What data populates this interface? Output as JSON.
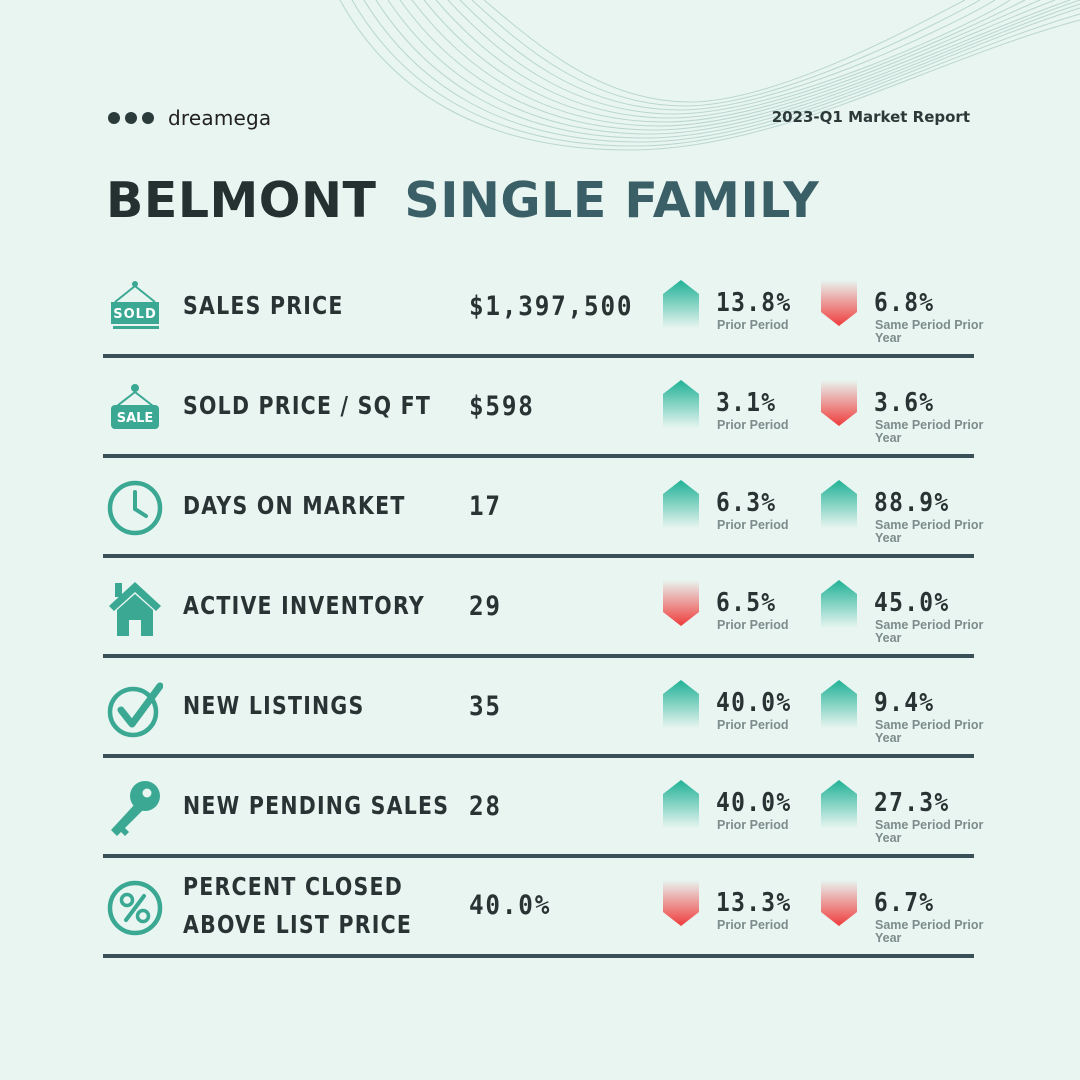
{
  "brand": {
    "name": "dreamega"
  },
  "report_label": "2023-Q1 Market Report",
  "title": {
    "city": "BELMONT",
    "type": "SINGLE FAMILY"
  },
  "colors": {
    "up": "#2bb39a",
    "down": "#e53935",
    "text": "#2a3333",
    "accent": "#3b5f67",
    "icon": "#3aa892",
    "background": "#e8f5f1"
  },
  "metrics": [
    {
      "icon": "sold-sign-icon",
      "label": "SALES PRICE",
      "value": "$1,397,500",
      "prior_period": {
        "pct": "13.8%",
        "dir": "up",
        "caption": "Prior Period"
      },
      "prior_year": {
        "pct": "6.8%",
        "dir": "down",
        "caption": "Same Period Prior Year"
      }
    },
    {
      "icon": "sale-tag-icon",
      "label": "SOLD PRICE / SQ FT",
      "value": "$598",
      "prior_period": {
        "pct": "3.1%",
        "dir": "up",
        "caption": "Prior Period"
      },
      "prior_year": {
        "pct": "3.6%",
        "dir": "down",
        "caption": "Same Period Prior Year"
      }
    },
    {
      "icon": "clock-icon",
      "label": "DAYS ON MARKET",
      "value": "17",
      "prior_period": {
        "pct": "6.3%",
        "dir": "up",
        "caption": "Prior Period"
      },
      "prior_year": {
        "pct": "88.9%",
        "dir": "up",
        "caption": "Same Period Prior Year"
      }
    },
    {
      "icon": "house-icon",
      "label": "ACTIVE INVENTORY",
      "value": "29",
      "prior_period": {
        "pct": "6.5%",
        "dir": "down",
        "caption": "Prior Period"
      },
      "prior_year": {
        "pct": "45.0%",
        "dir": "up",
        "caption": "Same Period Prior Year"
      }
    },
    {
      "icon": "checkmark-icon",
      "label": "NEW LISTINGS",
      "value": "35",
      "prior_period": {
        "pct": "40.0%",
        "dir": "up",
        "caption": "Prior Period"
      },
      "prior_year": {
        "pct": "9.4%",
        "dir": "up",
        "caption": "Same Period Prior Year"
      }
    },
    {
      "icon": "key-icon",
      "label": "NEW PENDING SALES",
      "value": "28",
      "prior_period": {
        "pct": "40.0%",
        "dir": "up",
        "caption": "Prior Period"
      },
      "prior_year": {
        "pct": "27.3%",
        "dir": "up",
        "caption": "Same Period Prior Year"
      }
    },
    {
      "icon": "percent-icon",
      "label": "PERCENT CLOSED ABOVE LIST PRICE",
      "label_lines": [
        "PERCENT CLOSED",
        "ABOVE LIST PRICE"
      ],
      "value": "40.0%",
      "prior_period": {
        "pct": "13.3%",
        "dir": "down",
        "caption": "Prior Period"
      },
      "prior_year": {
        "pct": "6.7%",
        "dir": "down",
        "caption": "Same Period Prior Year"
      }
    }
  ]
}
